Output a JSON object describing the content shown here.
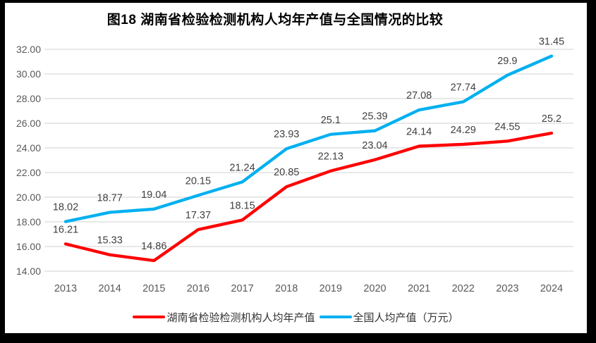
{
  "title": "图18 湖南省检验检测机构人均年产值与全国情况的比较",
  "chart_data": {
    "type": "line",
    "title": "图18 湖南省检验检测机构人均年产值与全国情况的比较",
    "categories": [
      "2013",
      "2014",
      "2015",
      "2016",
      "2017",
      "2018",
      "2019",
      "2020",
      "2021",
      "2022",
      "2023",
      "2024"
    ],
    "series": [
      {
        "name": "湖南省检验检测机构人均年产值",
        "color": "#FF0000",
        "values": [
          16.21,
          15.33,
          14.86,
          17.37,
          18.15,
          20.85,
          22.13,
          23.04,
          24.14,
          24.29,
          24.55,
          25.2
        ]
      },
      {
        "name": "全国人均产值（万元）",
        "color": "#00B0F0",
        "values": [
          18.02,
          18.77,
          19.04,
          20.15,
          21.24,
          23.93,
          25.1,
          25.39,
          27.08,
          27.74,
          29.9,
          31.45
        ]
      }
    ],
    "ylim": [
      14,
      32
    ],
    "ytick_step": 2,
    "yticks": [
      "14.00",
      "16.00",
      "18.00",
      "20.00",
      "22.00",
      "24.00",
      "26.00",
      "28.00",
      "30.00",
      "32.00"
    ],
    "xlabel": "",
    "ylabel": "",
    "grid": true,
    "data_labels": true,
    "legend_position": "bottom",
    "colors": {
      "grid": "#D9D9D9",
      "axis_text": "#595959",
      "data_label": "#404040",
      "title": "#000000",
      "frame": "#000000",
      "background": "#FFFFFF"
    }
  }
}
